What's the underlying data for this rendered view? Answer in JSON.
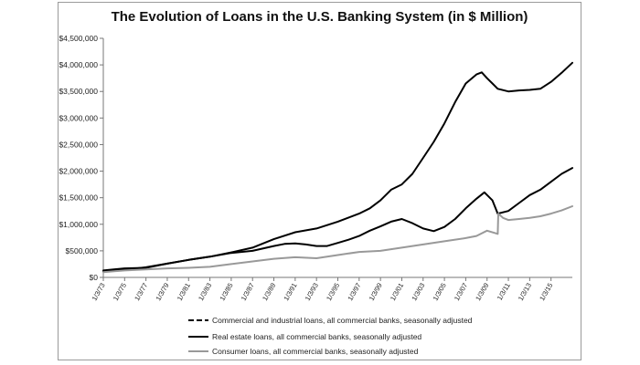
{
  "chart_data": {
    "type": "line",
    "title": "The Evolution of Loans in the U.S. Banking System (in $ Million)",
    "xlabel": "",
    "ylabel": "",
    "ylim": [
      0,
      4500000
    ],
    "xlim": [
      "1/3/73",
      "1/3/17"
    ],
    "y_ticks": [
      "$0",
      "$500,000",
      "$1,000,000",
      "$1,500,000",
      "$2,000,000",
      "$2,500,000",
      "$3,000,000",
      "$3,500,000",
      "$4,000,000",
      "$4,500,000"
    ],
    "x_ticks": [
      "1/3/73",
      "1/3/75",
      "1/3/77",
      "1/3/79",
      "1/3/81",
      "1/3/83",
      "1/3/85",
      "1/3/87",
      "1/3/89",
      "1/3/91",
      "1/3/93",
      "1/3/95",
      "1/3/97",
      "1/3/99",
      "1/3/01",
      "1/3/03",
      "1/3/05",
      "1/3/07",
      "1/3/09",
      "1/3/11",
      "1/3/13",
      "1/3/15"
    ],
    "grid": false,
    "legend_position": "bottom",
    "series": [
      {
        "name": "Commercial and industrial loans, all commercial banks, seasonally adjusted",
        "color": "#000000",
        "style": "dashed",
        "x": [
          1973,
          1975,
          1977,
          1979,
          1981,
          1983,
          1985,
          1987,
          1989,
          1990,
          1991,
          1992,
          1993,
          1994,
          1995,
          1996,
          1997,
          1998,
          1999,
          2000,
          2001,
          2002,
          2003,
          2004,
          2005,
          2006,
          2007,
          2008,
          2008.75,
          2009.5,
          2010,
          2011,
          2012,
          2013,
          2014,
          2015,
          2016,
          2017
        ],
        "y": [
          130000,
          170000,
          180000,
          260000,
          330000,
          390000,
          460000,
          500000,
          590000,
          630000,
          640000,
          620000,
          590000,
          590000,
          650000,
          710000,
          780000,
          880000,
          960000,
          1050000,
          1100000,
          1020000,
          920000,
          870000,
          950000,
          1100000,
          1300000,
          1480000,
          1600000,
          1450000,
          1200000,
          1250000,
          1400000,
          1550000,
          1650000,
          1800000,
          1950000,
          2060000
        ]
      },
      {
        "name": "Real estate loans, all commercial banks, seasonally adjusted",
        "color": "#000000",
        "style": "solid",
        "x": [
          1973,
          1975,
          1977,
          1979,
          1981,
          1983,
          1985,
          1987,
          1989,
          1991,
          1993,
          1995,
          1997,
          1998,
          1999,
          2000,
          2001,
          2002,
          2003,
          2004,
          2005,
          2006,
          2007,
          2008,
          2008.5,
          2009,
          2009.5,
          2010,
          2011,
          2012,
          2013,
          2014,
          2015,
          2016,
          2017
        ],
        "y": [
          110000,
          140000,
          190000,
          260000,
          330000,
          390000,
          470000,
          560000,
          720000,
          850000,
          920000,
          1050000,
          1200000,
          1300000,
          1450000,
          1650000,
          1750000,
          1950000,
          2250000,
          2550000,
          2900000,
          3300000,
          3650000,
          3820000,
          3860000,
          3750000,
          3650000,
          3550000,
          3500000,
          3520000,
          3530000,
          3550000,
          3680000,
          3850000,
          4040000
        ]
      },
      {
        "name": "Consumer loans, all commercial banks, seasonally adjusted",
        "color": "#999999",
        "style": "solid",
        "x": [
          1973,
          1975,
          1977,
          1979,
          1981,
          1983,
          1985,
          1987,
          1989,
          1991,
          1993,
          1995,
          1997,
          1999,
          2001,
          2003,
          2005,
          2007,
          2008,
          2009,
          2010,
          2010.05,
          2010.5,
          2011,
          2012,
          2013,
          2014,
          2015,
          2016,
          2017
        ],
        "y": [
          100000,
          130000,
          150000,
          170000,
          180000,
          200000,
          250000,
          300000,
          350000,
          380000,
          360000,
          420000,
          480000,
          500000,
          560000,
          620000,
          680000,
          740000,
          780000,
          880000,
          820000,
          1200000,
          1120000,
          1080000,
          1100000,
          1120000,
          1150000,
          1200000,
          1260000,
          1340000
        ]
      }
    ]
  }
}
